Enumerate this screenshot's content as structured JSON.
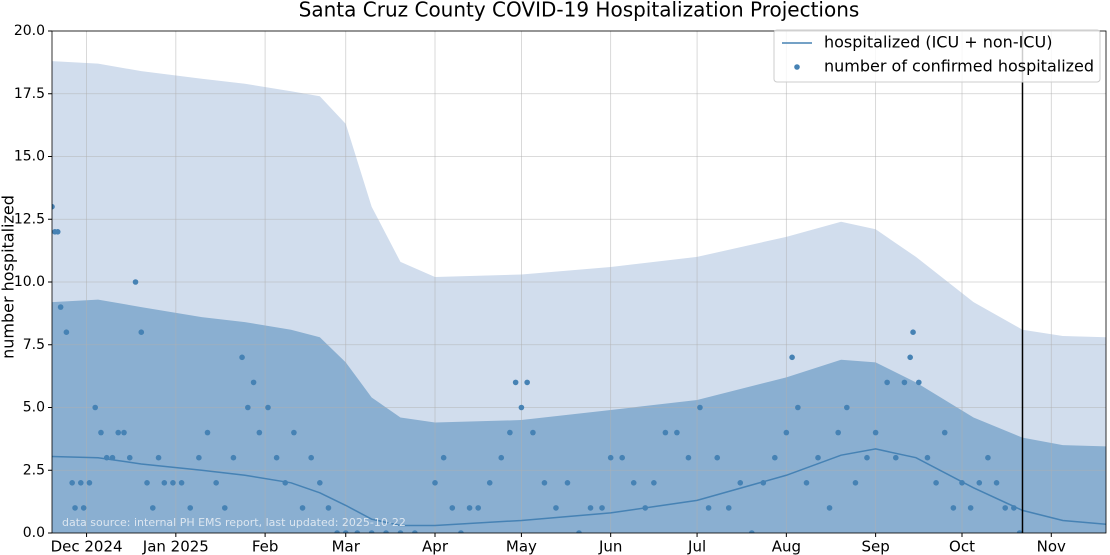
{
  "chart_data": {
    "type": "line",
    "title": "Santa Cruz County COVID-19 Hospitalization Projections",
    "ylabel": "number hospitalized",
    "annotation": "data source: internal PH EMS report, last updated: 2025-10-22",
    "xlim": [
      "2024-11-19",
      "2025-11-20"
    ],
    "xticks": [
      {
        "value": "2024-12-01",
        "label": "Dec 2024"
      },
      {
        "value": "2025-01-01",
        "label": "Jan 2025"
      },
      {
        "value": "2025-02-01",
        "label": "Feb"
      },
      {
        "value": "2025-03-01",
        "label": "Mar"
      },
      {
        "value": "2025-04-01",
        "label": "Apr"
      },
      {
        "value": "2025-05-01",
        "label": "May"
      },
      {
        "value": "2025-06-01",
        "label": "Jun"
      },
      {
        "value": "2025-07-01",
        "label": "Jul"
      },
      {
        "value": "2025-08-01",
        "label": "Aug"
      },
      {
        "value": "2025-09-01",
        "label": "Sep"
      },
      {
        "value": "2025-10-01",
        "label": "Oct"
      },
      {
        "value": "2025-11-01",
        "label": "Nov"
      }
    ],
    "ylim": [
      0,
      20
    ],
    "yticks": [
      {
        "value": 0,
        "label": "0.0"
      },
      2.5,
      {
        "value": 5,
        "label": "5.0"
      },
      7.5,
      {
        "value": 10,
        "label": "10.0"
      },
      12.5,
      {
        "value": 15,
        "label": "15.0"
      },
      17.5,
      {
        "value": 20,
        "label": "20.0"
      }
    ],
    "grid": true,
    "legend": "upper right",
    "vline": "2025-10-22",
    "x": [
      "2024-11-19",
      "2024-12-05",
      "2024-12-20",
      "2025-01-10",
      "2025-01-25",
      "2025-02-10",
      "2025-02-20",
      "2025-03-01",
      "2025-03-10",
      "2025-03-20",
      "2025-04-01",
      "2025-05-01",
      "2025-06-01",
      "2025-07-01",
      "2025-08-01",
      "2025-08-20",
      "2025-09-01",
      "2025-09-15",
      "2025-10-05",
      "2025-10-22",
      "2025-11-05",
      "2025-11-20"
    ],
    "bands": [
      {
        "color": "#d1dded",
        "upper": [
          18.8,
          18.7,
          18.4,
          18.1,
          17.9,
          17.6,
          17.4,
          16.3,
          13.0,
          10.8,
          10.2,
          10.3,
          10.6,
          11.0,
          11.8,
          12.4,
          12.1,
          11.0,
          9.2,
          8.1,
          7.85,
          7.8
        ]
      },
      {
        "color": "#8aafd1",
        "upper": [
          9.2,
          9.3,
          9.0,
          8.6,
          8.4,
          8.1,
          7.8,
          6.8,
          5.4,
          4.6,
          4.4,
          4.5,
          4.9,
          5.3,
          6.2,
          6.9,
          6.8,
          6.0,
          4.6,
          3.8,
          3.5,
          3.45
        ]
      }
    ],
    "series": [
      {
        "name": "hospitalized (ICU + non-ICU)",
        "color": "#4682b4",
        "values": [
          3.05,
          3.0,
          2.75,
          2.5,
          2.3,
          2.0,
          1.6,
          1.1,
          0.55,
          0.3,
          0.3,
          0.5,
          0.8,
          1.3,
          2.3,
          3.1,
          3.35,
          3.0,
          1.8,
          0.9,
          0.5,
          0.35
        ]
      },
      {
        "name": "number of confirmed hospitalized",
        "color": "#4682b4",
        "type": "scatter",
        "x": [
          "2024-11-19",
          "2024-11-20",
          "2024-11-21",
          "2024-11-22",
          "2024-11-24",
          "2024-11-26",
          "2024-11-27",
          "2024-11-29",
          "2024-11-30",
          "2024-12-02",
          "2024-12-04",
          "2024-12-06",
          "2024-12-08",
          "2024-12-10",
          "2024-12-12",
          "2024-12-14",
          "2024-12-16",
          "2024-12-18",
          "2024-12-20",
          "2024-12-22",
          "2024-12-24",
          "2024-12-26",
          "2024-12-28",
          "2024-12-31",
          "2025-01-03",
          "2025-01-06",
          "2025-01-09",
          "2025-01-12",
          "2025-01-15",
          "2025-01-18",
          "2025-01-21",
          "2025-01-24",
          "2025-01-26",
          "2025-01-28",
          "2025-01-30",
          "2025-02-02",
          "2025-02-05",
          "2025-02-08",
          "2025-02-11",
          "2025-02-14",
          "2025-02-17",
          "2025-02-20",
          "2025-02-23",
          "2025-02-26",
          "2025-03-01",
          "2025-03-05",
          "2025-03-10",
          "2025-03-15",
          "2025-03-20",
          "2025-03-25",
          "2025-04-01",
          "2025-04-04",
          "2025-04-07",
          "2025-04-10",
          "2025-04-13",
          "2025-04-16",
          "2025-04-20",
          "2025-04-24",
          "2025-04-27",
          "2025-04-29",
          "2025-05-01",
          "2025-05-03",
          "2025-05-05",
          "2025-05-09",
          "2025-05-13",
          "2025-05-17",
          "2025-05-21",
          "2025-05-25",
          "2025-05-29",
          "2025-06-01",
          "2025-06-05",
          "2025-06-09",
          "2025-06-13",
          "2025-06-16",
          "2025-06-20",
          "2025-06-24",
          "2025-06-28",
          "2025-07-02",
          "2025-07-05",
          "2025-07-08",
          "2025-07-12",
          "2025-07-16",
          "2025-07-20",
          "2025-07-24",
          "2025-07-28",
          "2025-08-01",
          "2025-08-03",
          "2025-08-05",
          "2025-08-08",
          "2025-08-12",
          "2025-08-16",
          "2025-08-19",
          "2025-08-22",
          "2025-08-25",
          "2025-08-29",
          "2025-09-01",
          "2025-09-05",
          "2025-09-08",
          "2025-09-11",
          "2025-09-13",
          "2025-09-14",
          "2025-09-16",
          "2025-09-19",
          "2025-09-22",
          "2025-09-25",
          "2025-09-28",
          "2025-10-01",
          "2025-10-04",
          "2025-10-07",
          "2025-10-10",
          "2025-10-13",
          "2025-10-16",
          "2025-10-19",
          "2025-10-21"
        ],
        "values": [
          13,
          12,
          12,
          9,
          8,
          2,
          1,
          2,
          1,
          2,
          5,
          4,
          3,
          3,
          4,
          4,
          3,
          10,
          8,
          2,
          1,
          3,
          2,
          2,
          2,
          1,
          3,
          4,
          2,
          1,
          3,
          7,
          5,
          6,
          4,
          5,
          3,
          2,
          4,
          1,
          3,
          2,
          1,
          0,
          0,
          0,
          0,
          0,
          0,
          0,
          2,
          3,
          1,
          0,
          1,
          1,
          2,
          3,
          4,
          6,
          5,
          6,
          4,
          2,
          1,
          2,
          0,
          1,
          1,
          3,
          3,
          2,
          1,
          2,
          4,
          4,
          3,
          5,
          1,
          3,
          1,
          2,
          0,
          2,
          3,
          4,
          7,
          5,
          2,
          3,
          1,
          4,
          5,
          2,
          3,
          4,
          6,
          3,
          6,
          7,
          8,
          6,
          3,
          2,
          4,
          1,
          2,
          1,
          2,
          3,
          2,
          1,
          1,
          0
        ]
      }
    ]
  }
}
